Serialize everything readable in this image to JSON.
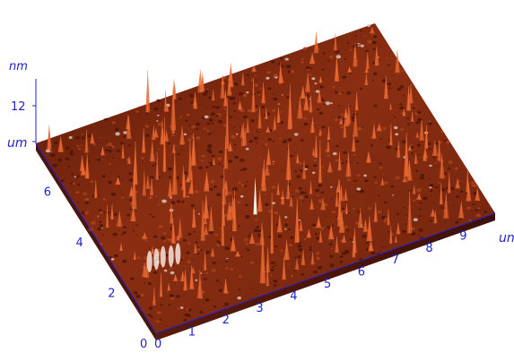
{
  "chart_data": {
    "type": "surface",
    "title": "",
    "z_unit": "nm",
    "z_tick_value": "12",
    "z_range": [
      0,
      12
    ],
    "x_unit": "un",
    "y_unit": "um",
    "x_ticks": [
      "0",
      "1",
      "2",
      "3",
      "4",
      "5",
      "6",
      "7",
      "8",
      "9"
    ],
    "y_ticks": [
      "0",
      "2",
      "4",
      "6"
    ],
    "x_range": [
      0,
      10
    ],
    "y_range": [
      0,
      7.5
    ],
    "surface_color": "#8a2e12",
    "spike_color": "#e0602a",
    "highlight_color": "#fff2e8",
    "axis_color": "#2222cc",
    "grid": false,
    "legend": "none"
  }
}
